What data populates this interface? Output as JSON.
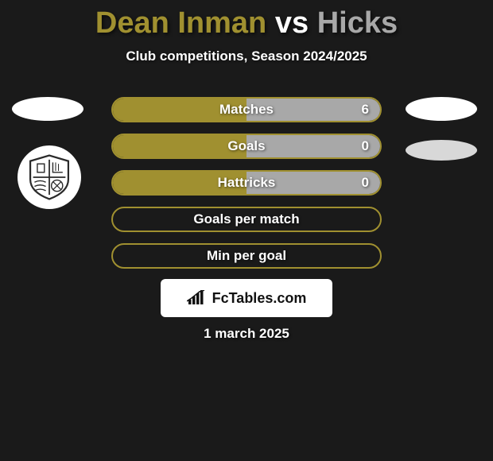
{
  "title": {
    "player1": "Dean Inman",
    "vs": "vs",
    "player2": "Hicks",
    "color1": "#a09030",
    "color_vs": "#ffffff",
    "color2": "#a8a8a8"
  },
  "subtitle": "Club competitions, Season 2024/2025",
  "stats": [
    {
      "label": "Matches",
      "right_val": "6",
      "left_fill_pct": 50,
      "right_fill_pct": 50,
      "left_color": "#a09030",
      "right_color": "#a8a8a8",
      "border": "#a09030"
    },
    {
      "label": "Goals",
      "right_val": "0",
      "left_fill_pct": 50,
      "right_fill_pct": 50,
      "left_color": "#a09030",
      "right_color": "#a8a8a8",
      "border": "#a09030"
    },
    {
      "label": "Hattricks",
      "right_val": "0",
      "left_fill_pct": 50,
      "right_fill_pct": 50,
      "left_color": "#a09030",
      "right_color": "#a8a8a8",
      "border": "#a09030"
    },
    {
      "label": "Goals per match",
      "right_val": "",
      "left_fill_pct": 0,
      "right_fill_pct": 0,
      "left_color": "#a09030",
      "right_color": "#a8a8a8",
      "border": "#a09030"
    },
    {
      "label": "Min per goal",
      "right_val": "",
      "left_fill_pct": 0,
      "right_fill_pct": 0,
      "left_color": "#a09030",
      "right_color": "#a8a8a8",
      "border": "#a09030"
    }
  ],
  "row_bg": "#1a1a1a",
  "row_border_width": 2,
  "badge_text": "FcTables.com",
  "date": "1 march 2025",
  "club_badge_stroke": "#2a2a2a"
}
